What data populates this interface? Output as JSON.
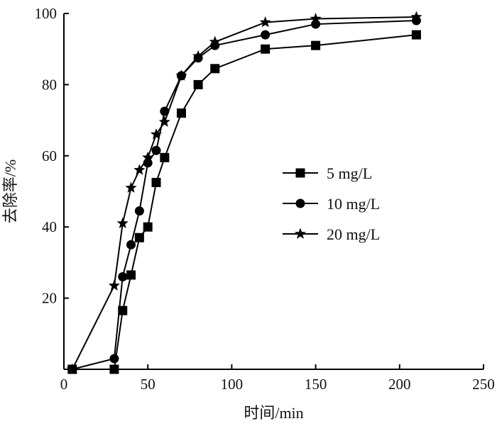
{
  "chart_data": {
    "type": "line",
    "title": "",
    "xlabel": "时间/min",
    "ylabel": "去除率/%",
    "xlim": [
      0,
      250
    ],
    "ylim": [
      0,
      100
    ],
    "x_ticks": [
      0,
      50,
      100,
      150,
      200,
      250
    ],
    "y_ticks": [
      20,
      40,
      60,
      80,
      100
    ],
    "x_tick_labels": [
      "0",
      "50",
      "100",
      "150",
      "200",
      "250"
    ],
    "y_tick_labels": [
      "20",
      "40",
      "60",
      "80",
      "100"
    ],
    "grid": false,
    "legend_position": "center-right",
    "series": [
      {
        "name": "5 mg/L",
        "marker": "square",
        "color": "#000000",
        "x": [
          5,
          30,
          35,
          40,
          45,
          50,
          55,
          60,
          70,
          80,
          90,
          120,
          150,
          210
        ],
        "y": [
          0,
          0,
          16.5,
          26.5,
          37,
          40,
          52.5,
          59.5,
          72,
          80,
          84.5,
          90,
          91,
          94
        ]
      },
      {
        "name": "10 mg/L",
        "marker": "circle",
        "color": "#000000",
        "x": [
          5,
          30,
          35,
          40,
          45,
          50,
          55,
          60,
          70,
          80,
          90,
          120,
          150,
          210
        ],
        "y": [
          0,
          3,
          26,
          35,
          44.5,
          58,
          61.5,
          72.5,
          82.5,
          87.5,
          91,
          94,
          97,
          98
        ]
      },
      {
        "name": "20 mg/L",
        "marker": "star",
        "color": "#000000",
        "x": [
          5,
          30,
          35,
          40,
          45,
          50,
          55,
          60,
          70,
          80,
          90,
          120,
          150,
          210
        ],
        "y": [
          0,
          23.5,
          41,
          51,
          56,
          59.5,
          66,
          69.5,
          82.5,
          88,
          92,
          97.5,
          98.5,
          99
        ]
      }
    ]
  }
}
